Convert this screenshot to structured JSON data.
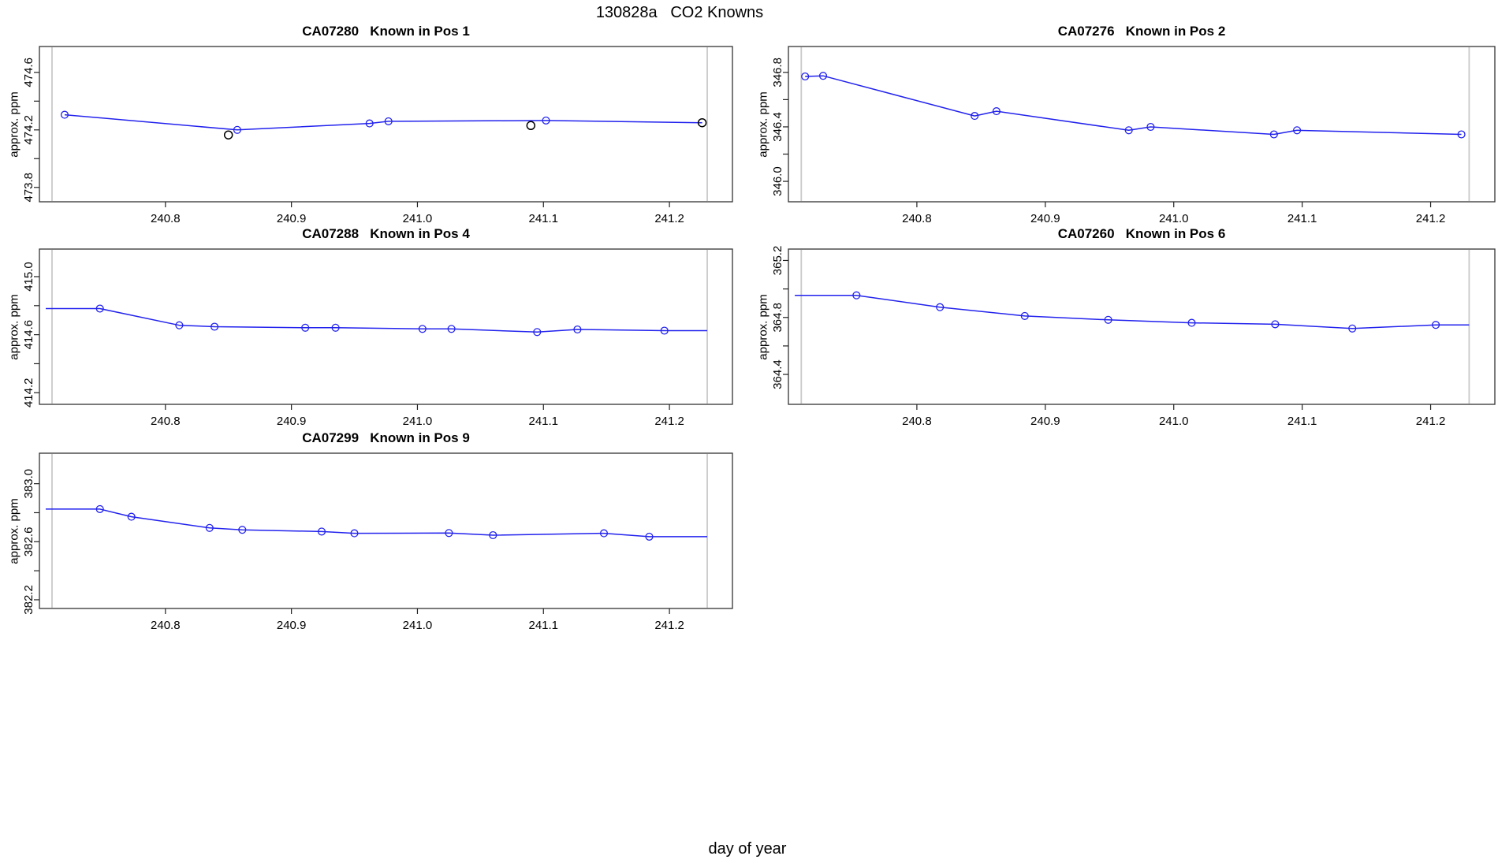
{
  "figure": {
    "title": "130828a   CO2 Knowns",
    "xlabel": "day of year"
  },
  "colors": {
    "series_line": "#2222ee",
    "series_marker": "#2222ee",
    "flagged_marker": "#000000",
    "guide_line": "#c9c9c9",
    "frame": "#333333",
    "tick": "#222222",
    "text": "#000000"
  },
  "chart_data": [
    {
      "type": "line",
      "title": "CA07280   Known in Pos 1",
      "ylabel": "approx. ppm",
      "grid_pos": {
        "row": 0,
        "col": 0
      },
      "xlim": [
        240.7,
        241.25
      ],
      "ylim": [
        473.7,
        474.78
      ],
      "xticks": [
        240.8,
        240.9,
        241.0,
        241.1,
        241.2
      ],
      "yticks": [
        473.8,
        474.0,
        474.2,
        474.4,
        474.6
      ],
      "ytick_labels": [
        "473.8",
        "",
        "474.2",
        "",
        "474.6"
      ],
      "guides_x": [
        240.71,
        241.23
      ],
      "grid": false,
      "legend": null,
      "series": [
        {
          "name": "accepted",
          "color_key": "series_marker",
          "line": [
            [
              240.72,
              474.305
            ],
            [
              240.857,
              474.2
            ],
            [
              240.962,
              474.245
            ],
            [
              240.977,
              474.26
            ],
            [
              241.102,
              474.265
            ],
            [
              241.226,
              474.25
            ]
          ],
          "markers": [
            [
              240.72,
              474.305
            ],
            [
              240.857,
              474.2
            ],
            [
              240.962,
              474.245
            ],
            [
              240.977,
              474.26
            ],
            [
              241.102,
              474.265
            ]
          ]
        },
        {
          "name": "flagged",
          "color_key": "flagged_marker",
          "line": [],
          "markers": [
            [
              240.85,
              474.165
            ],
            [
              241.09,
              474.23
            ],
            [
              241.226,
              474.25
            ]
          ]
        }
      ]
    },
    {
      "type": "line",
      "title": "CA07276   Known in Pos 2",
      "ylabel": "approx. ppm",
      "grid_pos": {
        "row": 0,
        "col": 1
      },
      "xlim": [
        240.7,
        241.25
      ],
      "ylim": [
        345.85,
        346.99
      ],
      "xticks": [
        240.8,
        240.9,
        241.0,
        241.1,
        241.2
      ],
      "yticks": [
        346.0,
        346.2,
        346.4,
        346.6,
        346.8
      ],
      "ytick_labels": [
        "346.0",
        "",
        "346.4",
        "",
        "346.8"
      ],
      "guides_x": [
        240.71,
        241.23
      ],
      "grid": false,
      "legend": null,
      "series": [
        {
          "name": "accepted",
          "color_key": "series_marker",
          "line": [
            [
              240.713,
              346.77
            ],
            [
              240.727,
              346.775
            ],
            [
              240.845,
              346.48
            ],
            [
              240.862,
              346.515
            ],
            [
              240.965,
              346.375
            ],
            [
              240.982,
              346.4
            ],
            [
              241.078,
              346.345
            ],
            [
              241.096,
              346.375
            ],
            [
              241.224,
              346.345
            ]
          ],
          "markers": [
            [
              240.713,
              346.77
            ],
            [
              240.727,
              346.775
            ],
            [
              240.845,
              346.48
            ],
            [
              240.862,
              346.515
            ],
            [
              240.965,
              346.375
            ],
            [
              240.982,
              346.4
            ],
            [
              241.078,
              346.345
            ],
            [
              241.096,
              346.375
            ],
            [
              241.224,
              346.345
            ]
          ]
        }
      ]
    },
    {
      "type": "line",
      "title": "CA07288   Known in Pos 4",
      "ylabel": "approx. ppm",
      "grid_pos": {
        "row": 1,
        "col": 0
      },
      "xlim": [
        240.7,
        241.25
      ],
      "ylim": [
        414.12,
        415.19
      ],
      "xticks": [
        240.8,
        240.9,
        241.0,
        241.1,
        241.2
      ],
      "yticks": [
        414.2,
        414.4,
        414.6,
        414.8,
        415.0
      ],
      "ytick_labels": [
        "414.2",
        "",
        "414.6",
        "",
        "415.0"
      ],
      "guides_x": [
        240.71,
        241.23
      ],
      "grid": false,
      "legend": null,
      "series": [
        {
          "name": "accepted",
          "color_key": "series_marker",
          "line": [
            [
              240.705,
              414.78
            ],
            [
              240.748,
              414.78
            ],
            [
              240.811,
              414.665
            ],
            [
              240.839,
              414.655
            ],
            [
              240.911,
              414.648
            ],
            [
              240.935,
              414.648
            ],
            [
              241.004,
              414.64
            ],
            [
              241.027,
              414.64
            ],
            [
              241.095,
              414.618
            ],
            [
              241.127,
              414.636
            ],
            [
              241.196,
              414.628
            ],
            [
              241.23,
              414.628
            ]
          ],
          "markers": [
            [
              240.748,
              414.78
            ],
            [
              240.811,
              414.665
            ],
            [
              240.839,
              414.655
            ],
            [
              240.911,
              414.648
            ],
            [
              240.935,
              414.648
            ],
            [
              241.004,
              414.64
            ],
            [
              241.027,
              414.64
            ],
            [
              241.095,
              414.618
            ],
            [
              241.127,
              414.636
            ],
            [
              241.196,
              414.628
            ]
          ]
        }
      ]
    },
    {
      "type": "line",
      "title": "CA07260   Known in Pos 6",
      "ylabel": "approx. ppm",
      "grid_pos": {
        "row": 1,
        "col": 1
      },
      "xlim": [
        240.7,
        241.25
      ],
      "ylim": [
        364.19,
        365.28
      ],
      "xticks": [
        240.8,
        240.9,
        241.0,
        241.1,
        241.2
      ],
      "yticks": [
        364.4,
        364.6,
        364.8,
        365.0,
        365.2
      ],
      "ytick_labels": [
        "364.4",
        "",
        "364.8",
        "",
        "365.2"
      ],
      "guides_x": [
        240.71,
        241.23
      ],
      "grid": false,
      "legend": null,
      "series": [
        {
          "name": "accepted",
          "color_key": "series_marker",
          "line": [
            [
              240.705,
              364.955
            ],
            [
              240.753,
              364.955
            ],
            [
              240.818,
              364.872
            ],
            [
              240.884,
              364.81
            ],
            [
              240.949,
              364.783
            ],
            [
              241.014,
              364.762
            ],
            [
              241.079,
              364.752
            ],
            [
              241.139,
              364.722
            ],
            [
              241.204,
              364.748
            ],
            [
              241.23,
              364.748
            ]
          ],
          "markers": [
            [
              240.753,
              364.955
            ],
            [
              240.818,
              364.872
            ],
            [
              240.884,
              364.81
            ],
            [
              240.949,
              364.783
            ],
            [
              241.014,
              364.762
            ],
            [
              241.079,
              364.752
            ],
            [
              241.139,
              364.722
            ],
            [
              241.204,
              364.748
            ]
          ]
        }
      ]
    },
    {
      "type": "line",
      "title": "CA07299   Known in Pos 9",
      "ylabel": "approx. ppm",
      "grid_pos": {
        "row": 2,
        "col": 0
      },
      "xlim": [
        240.7,
        241.25
      ],
      "ylim": [
        382.14,
        383.21
      ],
      "xticks": [
        240.8,
        240.9,
        241.0,
        241.1,
        241.2
      ],
      "yticks": [
        382.2,
        382.4,
        382.6,
        382.8,
        383.0
      ],
      "ytick_labels": [
        "382.2",
        "",
        "382.6",
        "",
        "383.0"
      ],
      "guides_x": [
        240.71,
        241.23
      ],
      "grid": false,
      "legend": null,
      "series": [
        {
          "name": "accepted",
          "color_key": "series_marker",
          "line": [
            [
              240.705,
              382.825
            ],
            [
              240.748,
              382.825
            ],
            [
              240.773,
              382.772
            ],
            [
              240.835,
              382.695
            ],
            [
              240.861,
              382.682
            ],
            [
              240.924,
              382.67
            ],
            [
              240.95,
              382.658
            ],
            [
              241.025,
              382.66
            ],
            [
              241.06,
              382.645
            ],
            [
              241.148,
              382.658
            ],
            [
              241.184,
              382.635
            ],
            [
              241.23,
              382.635
            ]
          ],
          "markers": [
            [
              240.748,
              382.825
            ],
            [
              240.773,
              382.772
            ],
            [
              240.835,
              382.695
            ],
            [
              240.861,
              382.682
            ],
            [
              240.924,
              382.67
            ],
            [
              240.95,
              382.658
            ],
            [
              241.025,
              382.66
            ],
            [
              241.06,
              382.645
            ],
            [
              241.148,
              382.658
            ],
            [
              241.184,
              382.635
            ]
          ]
        }
      ]
    }
  ]
}
